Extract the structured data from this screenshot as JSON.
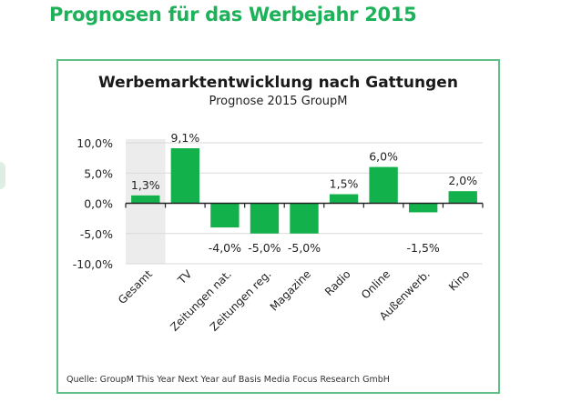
{
  "page": {
    "title": "Prognosen für das Werbejahr 2015"
  },
  "chart_data": {
    "type": "bar",
    "title": "Werbemarktentwicklung nach Gattungen",
    "subtitle": "Prognose 2015  GroupM",
    "categories": [
      "Gesamt",
      "TV",
      "Zeitungen nat.",
      "Zeitungen reg.",
      "Magazine",
      "Radio",
      "Online",
      "Außenwerb.",
      "Kino"
    ],
    "values": [
      1.3,
      9.1,
      -4.0,
      -5.0,
      -5.0,
      1.5,
      6.0,
      -1.5,
      2.0
    ],
    "data_labels": [
      "1,3%",
      "9,1%",
      "-4,0%",
      "-5,0%",
      "-5,0%",
      "1,5%",
      "6,0%",
      "-1,5%",
      "2,0%"
    ],
    "highlighted_category": "Gesamt",
    "xlabel": "",
    "ylabel": "",
    "ylim": [
      -10,
      10
    ],
    "yticks": [
      10,
      5,
      0,
      -5,
      -10
    ],
    "ytick_labels": [
      "10,0%",
      "5,0%",
      "0,0%",
      "-5,0%",
      "-10,0%"
    ],
    "grid": true,
    "legend": "none",
    "colors": {
      "bar": "#12b14b",
      "highlight_band": "#ececec",
      "grid": "#d9d9d9",
      "axis": "#222222"
    },
    "source": "Quelle: GroupM This Year Next Year auf Basis Media Focus Research GmbH"
  }
}
